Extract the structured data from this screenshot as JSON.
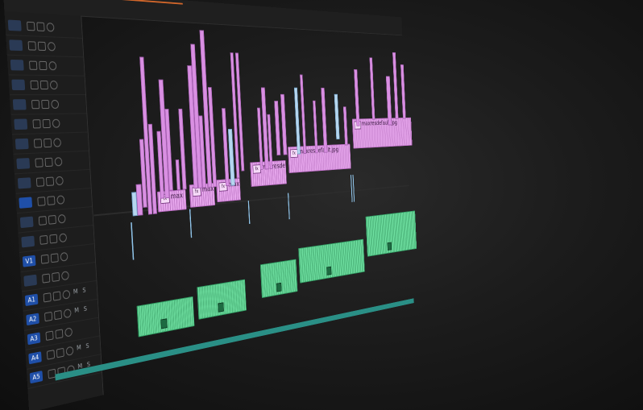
{
  "sequence": {
    "name": ""
  },
  "colors": {
    "video_clip": "#e6a6ec",
    "audio_clip": "#6fe0a1",
    "playhead": "#d2662a",
    "track_label_active": "#1f4fa8",
    "scrollbar": "#2a8f86"
  },
  "tracks": [
    {
      "label": "",
      "active": false
    },
    {
      "label": "",
      "active": false
    },
    {
      "label": "",
      "active": false
    },
    {
      "label": "",
      "active": false
    },
    {
      "label": "",
      "active": false
    },
    {
      "label": "",
      "active": false
    },
    {
      "label": "",
      "active": false
    },
    {
      "label": "",
      "active": false
    },
    {
      "label": "",
      "active": false
    },
    {
      "label": "",
      "active": true
    },
    {
      "label": "",
      "active": false
    },
    {
      "label": "",
      "active": false
    },
    {
      "label": "V1",
      "active": true
    },
    {
      "label": "",
      "active": false
    },
    {
      "label": "A1",
      "active": true,
      "m": "M",
      "s": "S"
    },
    {
      "label": "A2",
      "active": true,
      "m": "M",
      "s": "S"
    },
    {
      "label": "A3",
      "active": true,
      "m": "",
      "s": ""
    },
    {
      "label": "A4",
      "active": true,
      "m": "M",
      "s": "S"
    },
    {
      "label": "A5",
      "active": true,
      "m": "M",
      "s": "S"
    }
  ],
  "video_clips": [
    {
      "name": "max",
      "fx": "fx"
    },
    {
      "name": "maxi",
      "fx": "fx"
    },
    {
      "name": "max",
      "fx": "fx"
    },
    {
      "name": "maxresde",
      "fx": "fx"
    },
    {
      "name": "maxresdefault.jpg",
      "fx": "fx"
    },
    {
      "name": "maxresdefault.jpg",
      "fx": "fx"
    }
  ],
  "audio_clips": [
    {
      "name": ""
    },
    {
      "name": ""
    },
    {
      "name": ""
    },
    {
      "name": ""
    },
    {
      "name": ""
    }
  ]
}
